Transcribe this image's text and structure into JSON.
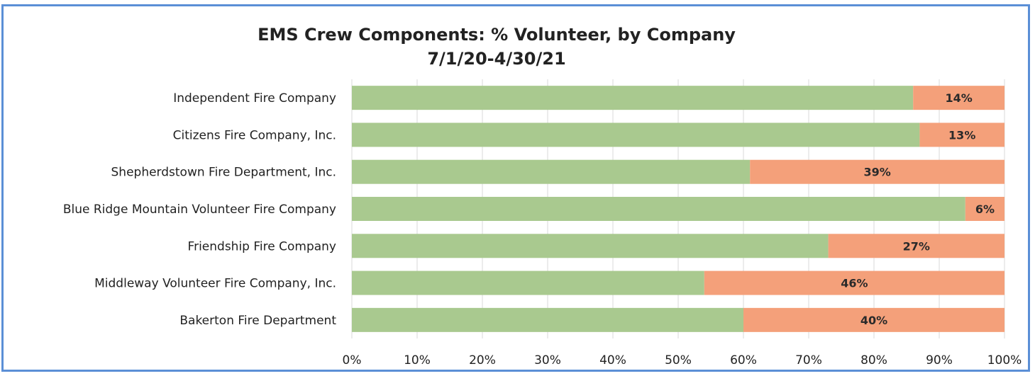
{
  "chart_data": {
    "type": "bar",
    "orientation": "horizontal",
    "stacked": true,
    "title": "EMS Crew Components: % Volunteer, by Company",
    "subtitle": "7/1/20-4/30/21",
    "xlabel": "",
    "ylabel": "",
    "xlim": [
      0,
      100
    ],
    "x_ticks": [
      "0%",
      "10%",
      "20%",
      "30%",
      "40%",
      "50%",
      "60%",
      "70%",
      "80%",
      "90%",
      "100%"
    ],
    "grid": "vertical",
    "categories": [
      "Independent Fire Company",
      "Citizens Fire Company, Inc.",
      "Shepherdstown Fire Department, Inc.",
      "Blue Ridge Mountain Volunteer Fire Company",
      "Friendship Fire Company",
      "Middleway Volunteer Fire Company, Inc.",
      "Bakerton Fire Department"
    ],
    "series": [
      {
        "color": "#a9c98f",
        "values": [
          86,
          87,
          61,
          94,
          73,
          54,
          60
        ],
        "labels": [
          "",
          "",
          "",
          "",
          "",
          "",
          ""
        ]
      },
      {
        "color": "#f4a07a",
        "values": [
          14,
          13,
          39,
          6,
          27,
          46,
          40
        ],
        "labels": [
          "14%",
          "13%",
          "39%",
          "6%",
          "27%",
          "46%",
          "40%"
        ]
      }
    ]
  }
}
